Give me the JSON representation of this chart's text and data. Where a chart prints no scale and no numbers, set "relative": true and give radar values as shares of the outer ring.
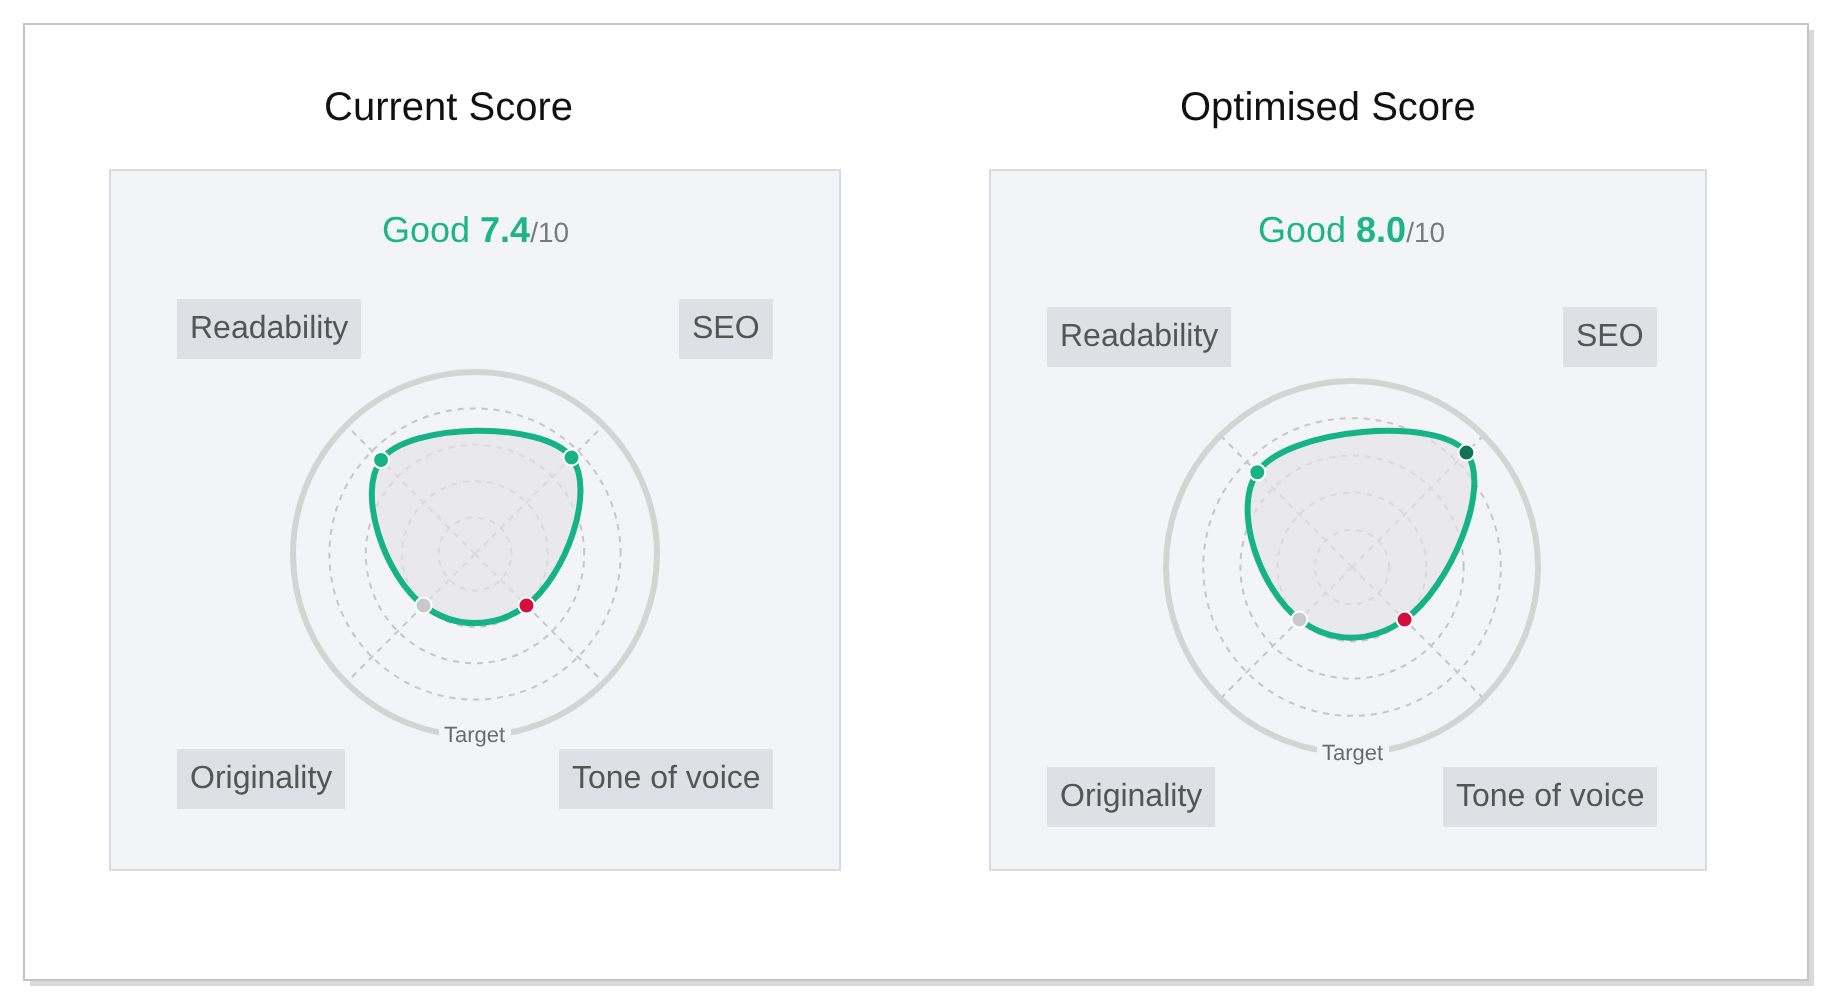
{
  "chart_data": [
    {
      "type": "radar",
      "title": "Current Score",
      "subtitle": "Good 7.4/10",
      "categories": [
        "Readability",
        "SEO",
        "Tone of voice",
        "Originality"
      ],
      "relative": true,
      "grid": true,
      "marker": "circle",
      "series": [
        {
          "color": "#16b386",
          "colors": [
            "#16b386",
            "#16b386",
            "#d3103c",
            "#c9c9c9"
          ],
          "values": [
            0.73,
            0.75,
            0.4,
            0.4
          ]
        }
      ],
      "annotations": [
        "Target"
      ]
    },
    {
      "type": "radar",
      "title": "Optimised Score",
      "subtitle": "Good 8.0/10",
      "categories": [
        "Readability",
        "SEO",
        "Tone of voice",
        "Originality"
      ],
      "relative": true,
      "grid": true,
      "marker": "circle",
      "series": [
        {
          "color": "#16b386",
          "colors": [
            "#16b386",
            "#0f7455",
            "#d3103c",
            "#c9c9c9"
          ],
          "values": [
            0.72,
            0.87,
            0.4,
            0.4
          ]
        }
      ],
      "annotations": [
        "Target"
      ]
    }
  ]
}
